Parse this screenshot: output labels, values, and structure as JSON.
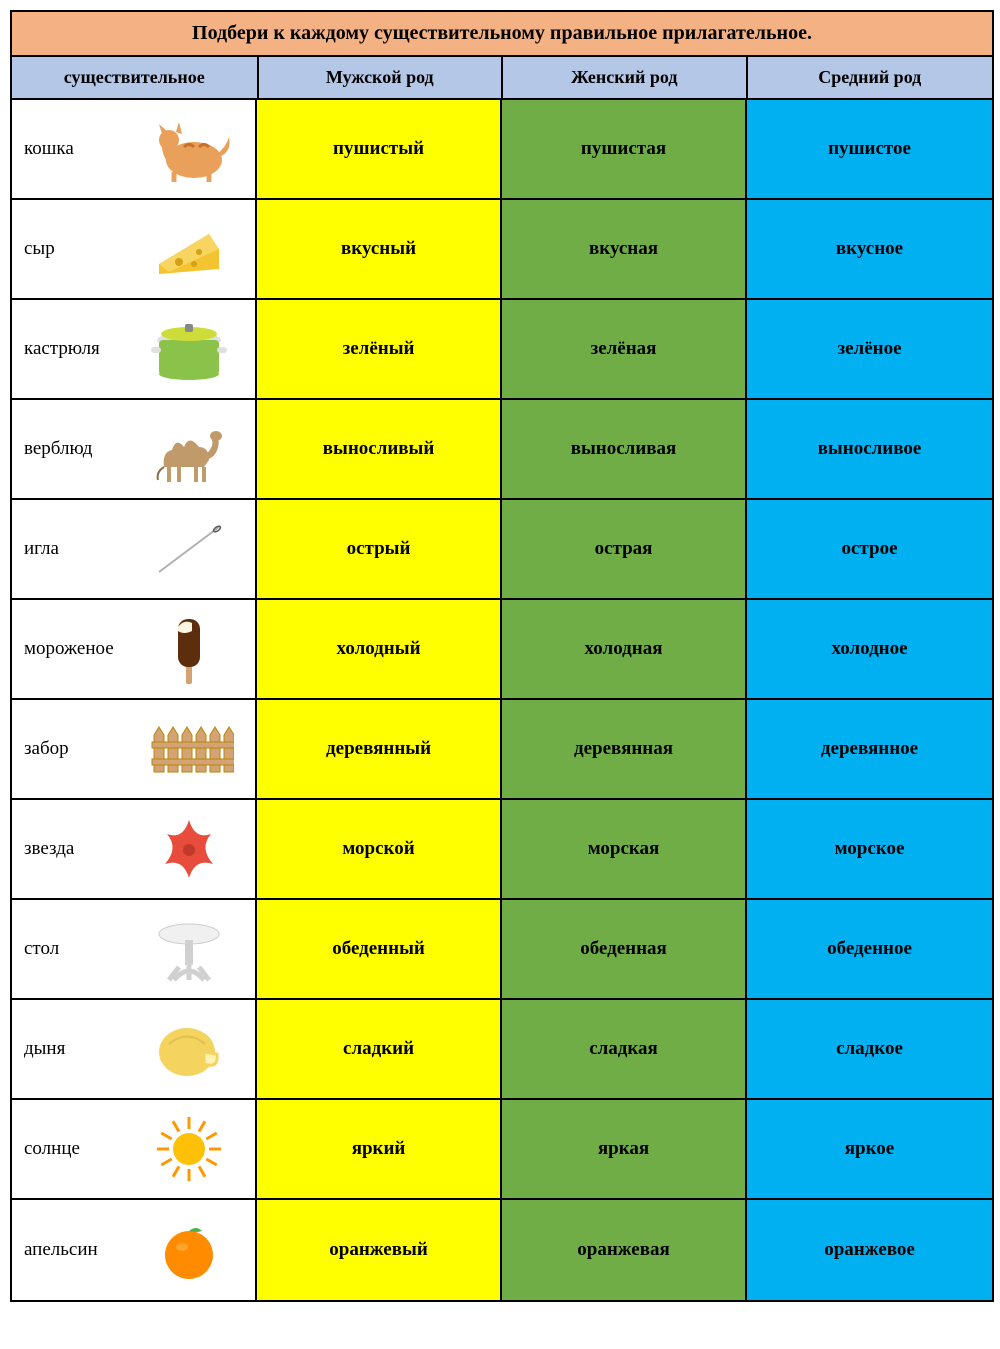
{
  "title": "Подбери к каждому существительному правильное прилагательное.",
  "columns": {
    "noun": "существительное",
    "masculine": "Мужской род",
    "feminine": "Женский род",
    "neuter": "Средний род"
  },
  "colors": {
    "title_bg": "#f4b183",
    "header_bg": "#b4c7e7",
    "masculine_bg": "#ffff00",
    "feminine_bg": "#70ad47",
    "neuter_bg": "#00b0f0",
    "border": "#000000",
    "noun_bg": "#ffffff"
  },
  "fonts": {
    "title_size": 20,
    "header_size": 18,
    "cell_size": 19,
    "family": "Georgia, serif"
  },
  "rows": [
    {
      "noun": "кошка",
      "icon": "cat",
      "m": "пушистый",
      "f": "пушистая",
      "n": "пушистое"
    },
    {
      "noun": "сыр",
      "icon": "cheese",
      "m": "вкусный",
      "f": "вкусная",
      "n": "вкусное"
    },
    {
      "noun": "кастрюля",
      "icon": "pot",
      "m": "зелёный",
      "f": "зелёная",
      "n": "зелёное"
    },
    {
      "noun": "верблюд",
      "icon": "camel",
      "m": "выносливый",
      "f": "выносливая",
      "n": "выносливое"
    },
    {
      "noun": "игла",
      "icon": "needle",
      "m": "острый",
      "f": "острая",
      "n": "острое"
    },
    {
      "noun": "мороженое",
      "icon": "icecream",
      "m": "холодный",
      "f": "холодная",
      "n": "холодное"
    },
    {
      "noun": "забор",
      "icon": "fence",
      "m": "деревянный",
      "f": "деревянная",
      "n": "деревянное"
    },
    {
      "noun": "звезда",
      "icon": "starfish",
      "m": "морской",
      "f": "морская",
      "n": "морское"
    },
    {
      "noun": "стол",
      "icon": "table",
      "m": "обеденный",
      "f": "обеденная",
      "n": "обеденное"
    },
    {
      "noun": "дыня",
      "icon": "melon",
      "m": "сладкий",
      "f": "сладкая",
      "n": "сладкое"
    },
    {
      "noun": "солнце",
      "icon": "sun",
      "m": "яркий",
      "f": "яркая",
      "n": "яркое"
    },
    {
      "noun": "апельсин",
      "icon": "orange",
      "m": "оранжевый",
      "f": "оранжевая",
      "n": "оранжевое"
    }
  ],
  "icon_colors": {
    "cat": {
      "body": "#e8a05a",
      "stripes": "#c9702a"
    },
    "cheese": {
      "body": "#f4c430",
      "holes": "#d4a017"
    },
    "pot": {
      "body": "#8bc34a",
      "lid": "#cddc39",
      "rim": "#e0e0e0"
    },
    "camel": {
      "body": "#c19a6b",
      "dark": "#8b6f47"
    },
    "needle": {
      "body": "#b0b0b0",
      "eye": "#606060"
    },
    "icecream": {
      "choc": "#5d2e0d",
      "stick": "#d4a373",
      "bite": "#fff5e1"
    },
    "fence": {
      "wood": "#d4a373",
      "dark": "#b8860b"
    },
    "starfish": {
      "body": "#e74c3c",
      "dark": "#c0392b"
    },
    "table": {
      "top": "#f0f0f0",
      "leg": "#d0d0d0"
    },
    "melon": {
      "outer": "#f4d35e",
      "inner": "#fff3b0"
    },
    "sun": {
      "body": "#ffc107",
      "ray": "#ff9800"
    },
    "orange": {
      "body": "#ff8c00",
      "leaf": "#4caf50"
    }
  }
}
